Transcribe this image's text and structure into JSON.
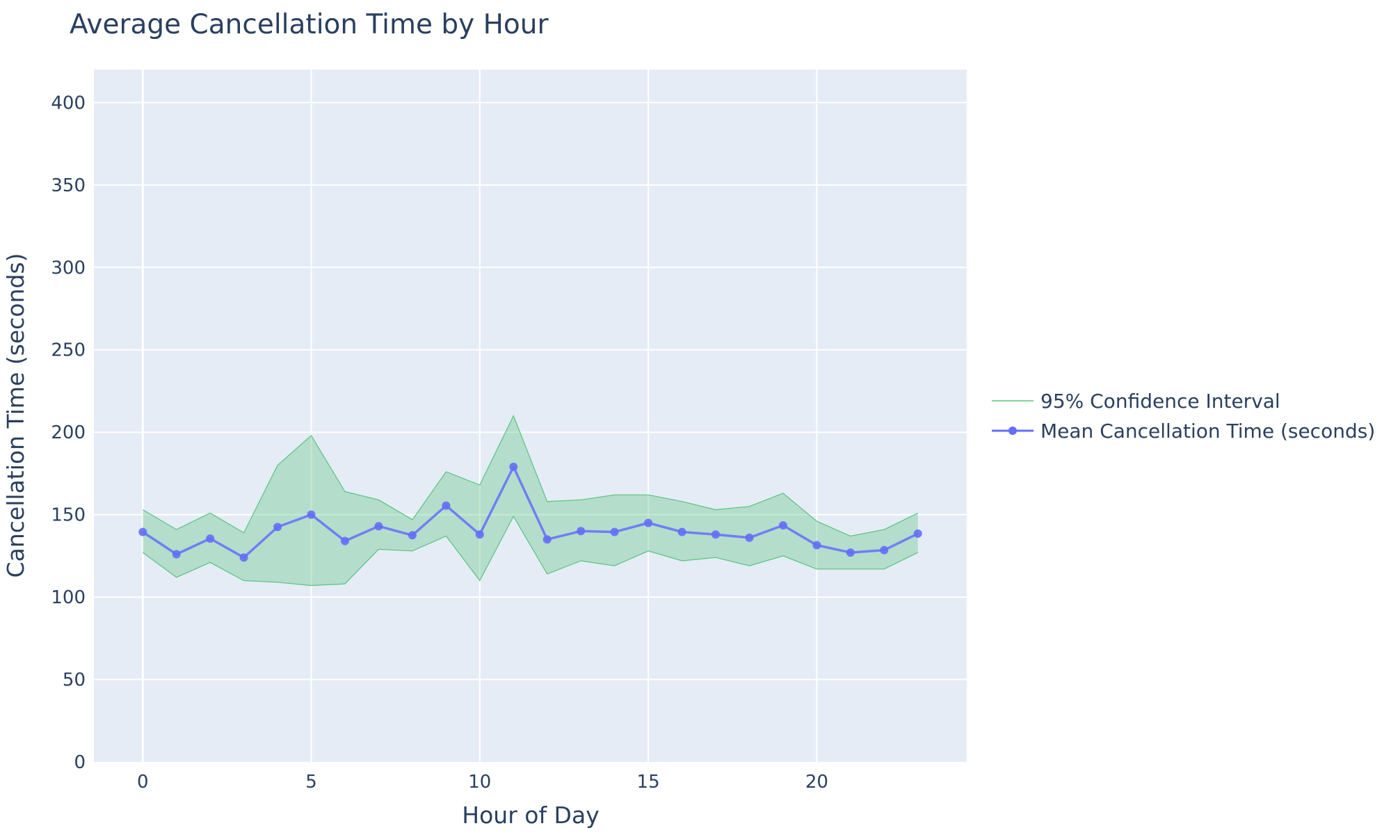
{
  "chart_data": {
    "type": "line",
    "title": "Average Cancellation Time by Hour",
    "xlabel": "Hour of Day",
    "ylabel": "Cancellation Time (seconds)",
    "xlim": [
      -1.45,
      24.45
    ],
    "ylim": [
      0,
      420
    ],
    "x_ticks": [
      0,
      5,
      10,
      15,
      20
    ],
    "y_ticks": [
      0,
      50,
      100,
      150,
      200,
      250,
      300,
      350,
      400
    ],
    "grid": true,
    "legend_position": "right",
    "x": [
      0,
      1,
      2,
      3,
      4,
      5,
      6,
      7,
      8,
      9,
      10,
      11,
      12,
      13,
      14,
      15,
      16,
      17,
      18,
      19,
      20,
      21,
      22,
      23
    ],
    "series": [
      {
        "name": "95% Confidence Interval",
        "kind": "band",
        "color": "#58c47e",
        "fill_color": "rgba(88,196,126,0.35)",
        "upper": [
          153,
          141,
          151,
          139,
          180,
          198,
          164,
          159,
          147,
          176,
          168,
          210,
          158,
          159,
          162,
          162,
          158,
          153,
          155,
          163,
          146,
          137,
          141,
          151
        ],
        "lower": [
          127,
          112,
          121,
          110,
          109,
          107,
          108,
          129,
          128,
          137,
          110,
          149,
          114,
          122,
          119,
          128,
          122,
          124,
          119,
          125,
          117,
          117,
          117,
          127
        ]
      },
      {
        "name": "Mean Cancellation Time (seconds)",
        "kind": "line",
        "color": "#636efa",
        "values": [
          139.5,
          126,
          135.5,
          124,
          142.5,
          150,
          134,
          143,
          137.5,
          155.5,
          138,
          179,
          135,
          140,
          139.5,
          145,
          139.5,
          138,
          136,
          143.5,
          131.5,
          127,
          128.5,
          138.5
        ]
      }
    ]
  }
}
